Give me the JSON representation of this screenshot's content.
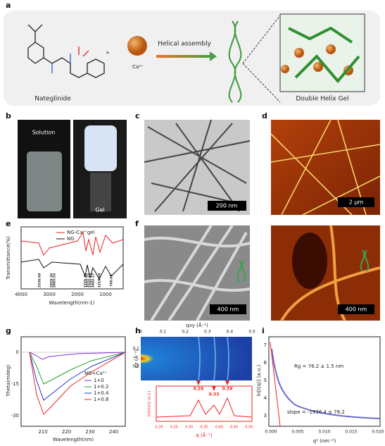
{
  "a": {
    "label": "a",
    "molecule": "Nateglinide",
    "ion": "Ca²⁺",
    "arrow": "Helical assembly",
    "product": "Double Helix Gel"
  },
  "b": {
    "label": "b",
    "solution": "Solution",
    "gel": "Gel"
  },
  "c": {
    "label": "c",
    "scale": "200 nm"
  },
  "d": {
    "label": "d",
    "scale_top": "2 μm",
    "scale_bottom": "400 nm"
  },
  "e": {
    "label": "e",
    "legend": [
      "NG-Ca²⁺gel",
      "NG"
    ],
    "y_label": "Transmittance(%)",
    "x_label": "Wavelength(nm-1)",
    "x_ticks": [
      "4000",
      "3000",
      "2000",
      "1000"
    ],
    "peaks": [
      "3338.68",
      "2929.30",
      "2860.02",
      "1716.40",
      "1652.31",
      "1540.11",
      "1442.17",
      "1214.64",
      "790.65"
    ]
  },
  "f": {
    "label": "f",
    "scale": "400 nm"
  },
  "g": {
    "label": "g",
    "y_label": "Theta(mdeg)",
    "x_label": "Wavelength(nm)",
    "y_ticks": [
      "0",
      "-15",
      "-30"
    ],
    "x_ticks": [
      "210",
      "220",
      "230",
      "240"
    ],
    "legend_title": "NG+Ca²⁺",
    "legend": [
      "1+0",
      "1+0.2",
      "1+0.4",
      "1+0.8"
    ]
  },
  "h": {
    "label": "h",
    "top_label": "qxy (Å⁻¹)",
    "top_ticks": [
      "0",
      "0.1",
      "0.2",
      "0.3",
      "0.4",
      "0.5"
    ],
    "left_label": "qz (Å⁻¹)",
    "left_ticks": [
      "0.1",
      "0.2"
    ],
    "peaks": [
      "0.26",
      "0.33",
      "0.39"
    ],
    "inset_x_label": "q (Å⁻¹)",
    "inset_y_label": "Intensity (a.u.)",
    "inset_ticks": [
      "0.20",
      "0.25",
      "0.30",
      "0.35",
      "0.40",
      "0.45",
      "0.50"
    ]
  },
  "i": {
    "label": "i",
    "rg": "Rg = 76.2 ± 1.5 nm",
    "slope": "slope = -1936.4 ± 78.2",
    "y_label": "ln[I(q)] (a.u.)",
    "x_label": "q² (nm⁻²)",
    "y_ticks": [
      "7",
      "6",
      "5",
      "4",
      "3"
    ],
    "x_ticks": [
      "0.000",
      "0.005",
      "0.010",
      "0.015",
      "0.020"
    ]
  }
}
